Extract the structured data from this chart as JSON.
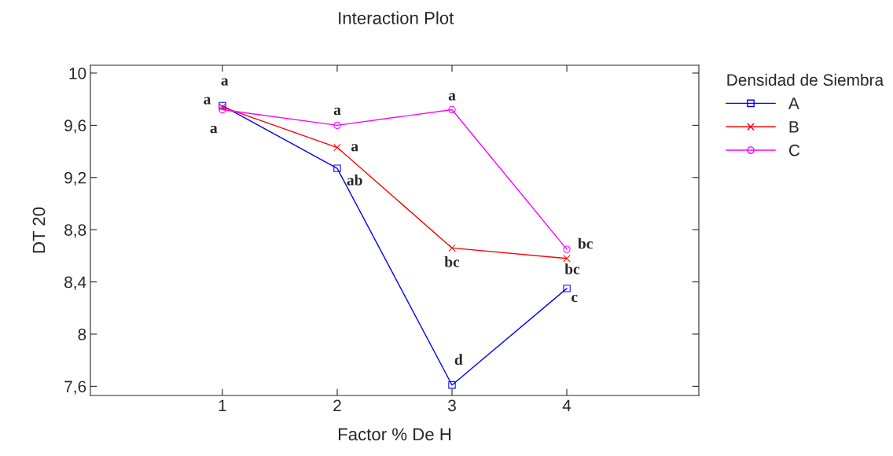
{
  "chart_data": {
    "type": "line",
    "title": "Interaction Plot",
    "xlabel": "Factor % De H",
    "ylabel": "DT 20",
    "legend_title": "Densidad de Siembra",
    "legend": "top right",
    "x": [
      1,
      2,
      3,
      4
    ],
    "xlim": [
      -0.15,
      5.15
    ],
    "xticks": [
      1,
      2,
      3,
      4
    ],
    "ylim": [
      7.53,
      10.06
    ],
    "yticks": [
      {
        "value": 7.6,
        "label": "7,6"
      },
      8,
      {
        "value": 8.4,
        "label": "8,4"
      },
      {
        "value": 8.8,
        "label": "8,8"
      },
      {
        "value": 9.2,
        "label": "9,2"
      },
      {
        "value": 9.6,
        "label": "9,6"
      },
      10
    ],
    "grid": false,
    "series": [
      {
        "name": "A",
        "color": "#0000ff",
        "marker": "square",
        "values": [
          9.75,
          9.27,
          7.61,
          8.35
        ]
      },
      {
        "name": "B",
        "color": "#ff0000",
        "marker": "cross",
        "values": [
          9.74,
          9.43,
          8.66,
          8.58
        ]
      },
      {
        "name": "C",
        "color": "#ff00ff",
        "marker": "circle",
        "values": [
          9.72,
          9.6,
          9.72,
          8.65
        ]
      }
    ],
    "annotations": [
      {
        "text": "a",
        "x": 1,
        "y": 9.75
      },
      {
        "text": "a",
        "x": 1,
        "y": 9.74
      },
      {
        "text": "a",
        "x": 1,
        "y": 9.72
      },
      {
        "text": "a",
        "x": 2,
        "y": 9.6
      },
      {
        "text": "a",
        "x": 2,
        "y": 9.43
      },
      {
        "text": "ab",
        "x": 2,
        "y": 9.27
      },
      {
        "text": "a",
        "x": 3,
        "y": 9.72
      },
      {
        "text": "bc",
        "x": 3,
        "y": 8.66
      },
      {
        "text": "d",
        "x": 3,
        "y": 7.61
      },
      {
        "text": "bc",
        "x": 4,
        "y": 8.65
      },
      {
        "text": "bc",
        "x": 4,
        "y": 8.58
      },
      {
        "text": "c",
        "x": 4,
        "y": 8.35
      }
    ]
  }
}
